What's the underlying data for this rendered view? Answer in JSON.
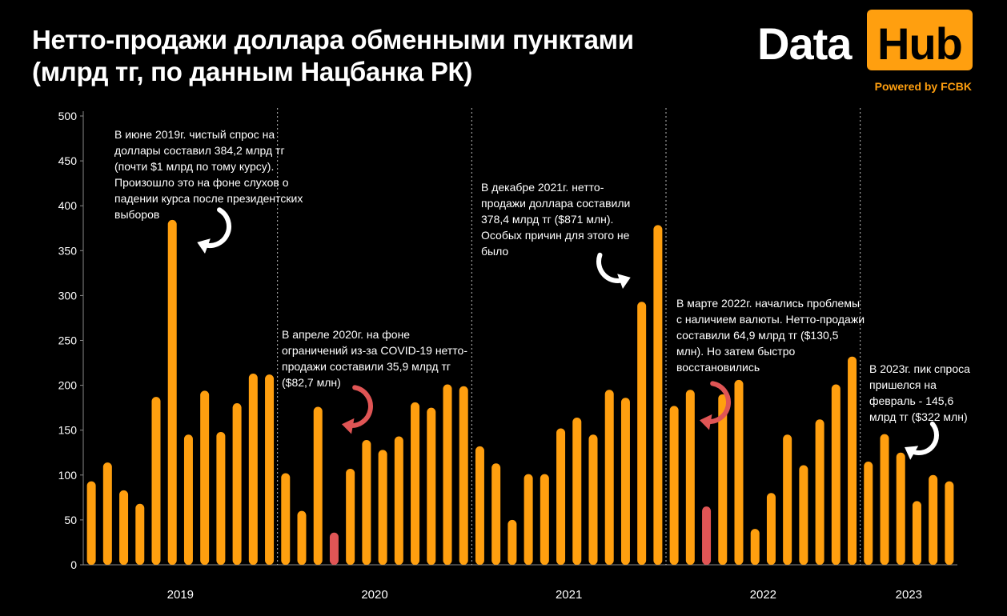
{
  "header": {
    "title_line1": "Нетто-продажи доллара обменными пунктами",
    "title_line2": "(млрд тг, по данным Нацбанка РК)"
  },
  "logo": {
    "word1": "Data",
    "word2": "Hub",
    "tagline": "Powered by FCBK"
  },
  "colors": {
    "bar": "#ff9f0f",
    "highlight": "#e05555",
    "accent": "#ff9f0f",
    "background": "#000000",
    "text": "#ffffff",
    "separator": "#aaaaaa"
  },
  "annotations": [
    {
      "id": "a2019",
      "lines": [
        "В июне 2019г. чистый спрос на",
        "доллары составил 384,2 млрд тг",
        "(почти $1 млрд по тому курсу).",
        "Произошло это на фоне слухов о",
        "падении курса после президентских",
        "выборов"
      ]
    },
    {
      "id": "a2020",
      "lines": [
        "В апреле 2020г. на фоне",
        "ограничений из-за COVID-19 нетто-",
        "продажи составили 35,9 млрд тг",
        "($82,7 млн)"
      ]
    },
    {
      "id": "a2021",
      "lines": [
        "В декабре 2021г. нетто-",
        "продажи доллара составили",
        "378,4 млрд тг ($871 млн).",
        "Особых причин для этого не",
        "было"
      ]
    },
    {
      "id": "a2022",
      "lines": [
        "В марте 2022г. начались проблемы",
        "с наличием валюты. Нетто-продажи",
        "составили 64,9 млрд тг ($130,5",
        "млн). Но затем быстро",
        "восстановились"
      ]
    },
    {
      "id": "a2023",
      "lines": [
        "В 2023г. пик спроса",
        "пришелся на",
        "февраль - 145,6",
        "млрд тг ($322 млн)"
      ]
    }
  ],
  "chart_data": {
    "type": "bar",
    "title": "Нетто-продажи доллара обменными пунктами (млрд тг, по данным Нацбанка РК)",
    "xlabel": "",
    "ylabel": "",
    "ylim": [
      0,
      500
    ],
    "yticks": [
      0,
      50,
      100,
      150,
      200,
      250,
      300,
      350,
      400,
      450,
      500
    ],
    "grid": false,
    "groups": [
      {
        "label": "2019",
        "count": 12
      },
      {
        "label": "2020",
        "count": 12
      },
      {
        "label": "2021",
        "count": 12
      },
      {
        "label": "2022",
        "count": 12
      },
      {
        "label": "2023",
        "count": 6
      }
    ],
    "series": [
      {
        "values": [
          93,
          114,
          83,
          68,
          187,
          384.2,
          145,
          194,
          148,
          180,
          213,
          212,
          102,
          60,
          176,
          35.9,
          107,
          139,
          128,
          143,
          181,
          175,
          201,
          199,
          132,
          113,
          50,
          101,
          101,
          152,
          164,
          145,
          195,
          186,
          293,
          378.4,
          177,
          195,
          64.9,
          190,
          206,
          40,
          80,
          145,
          111,
          162,
          201,
          232,
          115,
          145.6,
          125,
          71,
          100,
          93
        ]
      }
    ],
    "highlighted_indices": [
      15,
      38
    ]
  }
}
